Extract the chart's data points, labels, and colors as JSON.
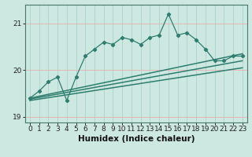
{
  "x": [
    0,
    1,
    2,
    3,
    4,
    5,
    6,
    7,
    8,
    9,
    10,
    11,
    12,
    13,
    14,
    15,
    16,
    17,
    18,
    19,
    20,
    21,
    22,
    23
  ],
  "y_spiky": [
    19.4,
    19.55,
    19.75,
    19.85,
    19.35,
    19.85,
    20.3,
    20.45,
    20.6,
    20.55,
    20.7,
    20.65,
    20.55,
    20.7,
    20.75,
    21.2,
    20.75,
    20.8,
    20.65,
    20.45,
    20.2,
    20.2,
    20.3,
    20.3
  ],
  "trend_upper_start": 19.4,
  "trend_upper_end": 20.35,
  "trend_mid_start": 19.38,
  "trend_mid_end": 20.2,
  "trend_lower_start": 19.35,
  "trend_lower_end": 20.05,
  "line_color": "#2e7d6e",
  "bg_color": "#cce8e0",
  "grid_color": "#aad4cc",
  "grid_red_color": "#e8b0b0",
  "xlabel": "Humidex (Indice chaleur)",
  "xlim": [
    -0.5,
    23.5
  ],
  "ylim": [
    18.88,
    21.4
  ],
  "yticks": [
    19,
    20,
    21
  ],
  "xtick_labels": [
    "0",
    "1",
    "2",
    "3",
    "4",
    "5",
    "6",
    "7",
    "8",
    "9",
    "10",
    "11",
    "12",
    "13",
    "14",
    "15",
    "16",
    "17",
    "18",
    "19",
    "20",
    "21",
    "22",
    "23"
  ],
  "label_fontsize": 7.5,
  "tick_fontsize": 6.5
}
